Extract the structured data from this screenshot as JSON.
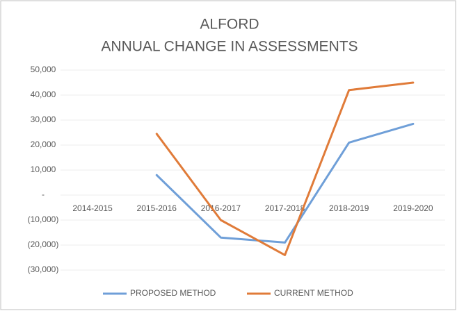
{
  "chart_data": {
    "type": "line",
    "title": "ALFORD",
    "subtitle": "ANNUAL CHANGE IN ASSESSMENTS",
    "categories": [
      "2014-2015",
      "2015-2016",
      "2016-2017",
      "2017-2018",
      "2018-2019",
      "2019-2020"
    ],
    "series": [
      {
        "name": "PROPOSED METHOD",
        "color": "#6f9fd8",
        "values": [
          null,
          8000,
          -17000,
          -19000,
          21000,
          28500
        ]
      },
      {
        "name": "CURRENT METHOD",
        "color": "#e07b39",
        "values": [
          null,
          24500,
          -10000,
          -24000,
          42000,
          45000
        ]
      }
    ],
    "ylim": [
      -30000,
      50000
    ],
    "yticks": [
      {
        "value": 50000,
        "label": "50,000"
      },
      {
        "value": 40000,
        "label": "40,000"
      },
      {
        "value": 30000,
        "label": "30,000"
      },
      {
        "value": 20000,
        "label": "20,000"
      },
      {
        "value": 10000,
        "label": "10,000"
      },
      {
        "value": 0,
        "label": "-"
      },
      {
        "value": -10000,
        "label": "(10,000)"
      },
      {
        "value": -20000,
        "label": "(20,000)"
      },
      {
        "value": -30000,
        "label": "(30,000)"
      }
    ],
    "grid": true,
    "legend": "bottom"
  }
}
